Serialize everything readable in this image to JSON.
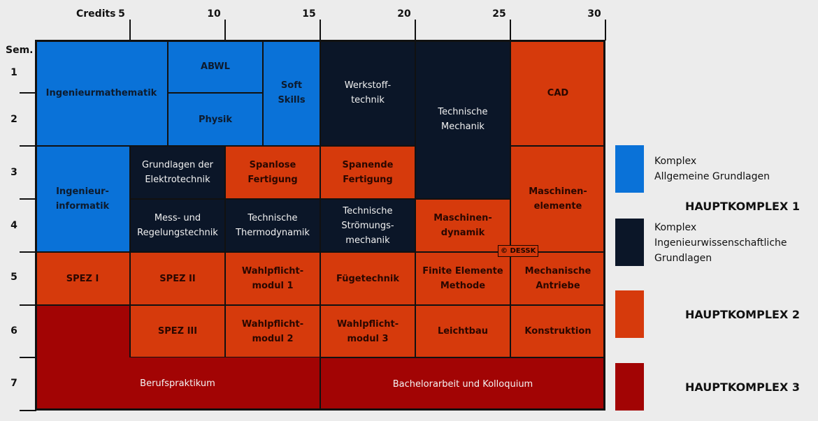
{
  "axis": {
    "credits_label": "Credits",
    "credit_ticks": [
      "5",
      "10",
      "15",
      "20",
      "25",
      "30"
    ],
    "sem_label": "Sem.",
    "semesters": [
      "1",
      "2",
      "3",
      "4",
      "5",
      "6",
      "7"
    ]
  },
  "modules": [
    {
      "label": "Ingenieurmathematik",
      "color": "blue"
    },
    {
      "label": "ABWL",
      "color": "blue"
    },
    {
      "label": "Physik",
      "color": "blue"
    },
    {
      "label": "Soft Skills",
      "color": "blue"
    },
    {
      "label": "Werkstoff-\ntechnik",
      "color": "navy"
    },
    {
      "label": "Technische\nMechanik",
      "color": "navy"
    },
    {
      "label": "CAD",
      "color": "orange"
    },
    {
      "label": "Ingenieur-\ninformatik",
      "color": "blue"
    },
    {
      "label": "Grundlagen der\nElektrotechnik",
      "color": "navy"
    },
    {
      "label": "Spanlose\nFertigung",
      "color": "orange"
    },
    {
      "label": "Spanende\nFertigung",
      "color": "orange"
    },
    {
      "label": "Maschinen-\nelemente",
      "color": "orange"
    },
    {
      "label": "Mess- und\nRegelungstechnik",
      "color": "navy"
    },
    {
      "label": "Technische\nThermodynamik",
      "color": "navy"
    },
    {
      "label": "Technische\nStrömungs-\nmechanik",
      "color": "navy"
    },
    {
      "label": "Maschinen-\ndynamik",
      "color": "orange"
    },
    {
      "label": "SPEZ I",
      "color": "orange"
    },
    {
      "label": "SPEZ II",
      "color": "orange"
    },
    {
      "label": "Wahlpflicht-\nmodul 1",
      "color": "orange"
    },
    {
      "label": "Fügetechnik",
      "color": "orange"
    },
    {
      "label": "Finite Elemente\nMethode",
      "color": "orange"
    },
    {
      "label": "Mechanische\nAntriebe",
      "color": "orange"
    },
    {
      "label": "SPEZ III",
      "color": "orange"
    },
    {
      "label": "Wahlpflicht-\nmodul 2",
      "color": "orange"
    },
    {
      "label": "Wahlpflicht-\nmodul 3",
      "color": "orange"
    },
    {
      "label": "Leichtbau",
      "color": "orange"
    },
    {
      "label": "Konstruktion",
      "color": "orange"
    },
    {
      "label": "Berufspraktikum",
      "color": "red"
    },
    {
      "label": "Bachelorarbeit und Kolloquium",
      "color": "red"
    }
  ],
  "stamp": "© DESSK",
  "legend": {
    "items": [
      {
        "text": "Komplex\nAllgemeine Grundlagen",
        "color": "#0a72d8"
      },
      {
        "text": "Komplex\nIngenieurwissenschaftliche\nGrundlagen",
        "color": "#0b1628"
      },
      {
        "text": "",
        "color": "#d63a0c"
      },
      {
        "text": "",
        "color": "#a20404"
      }
    ],
    "hauptkomplex_1": "HAUPTKOMPLEX 1",
    "hauptkomplex_2": "HAUPTKOMPLEX 2",
    "hauptkomplex_3": "HAUPTKOMPLEX 3"
  },
  "colors": {
    "blue": "#0a72d8",
    "navy": "#0b1628",
    "orange": "#d63a0c",
    "red": "#a20404"
  }
}
